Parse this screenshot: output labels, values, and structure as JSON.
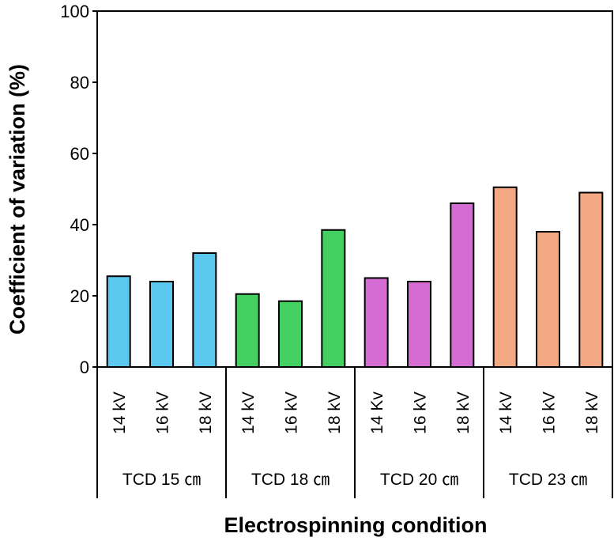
{
  "chart_data": {
    "type": "bar",
    "title": "",
    "xlabel": "Electrospinning condition",
    "ylabel": "Coefficient of variation (%)",
    "ylim": [
      0,
      100
    ],
    "yticks": [
      "0",
      "20",
      "40",
      "60",
      "80",
      "100"
    ],
    "grid": false,
    "groups": [
      {
        "name": "TCD 15 ㎝",
        "color": "#5bc8f0",
        "categories": [
          "14 kV",
          "16 kV",
          "18 kV"
        ],
        "values": [
          25.5,
          24,
          32
        ]
      },
      {
        "name": "TCD 18 ㎝",
        "color": "#44d060",
        "categories": [
          "14 kV",
          "16 kV",
          "18 kV"
        ],
        "values": [
          20.5,
          18.5,
          38.5
        ]
      },
      {
        "name": "TCD 20 ㎝",
        "color": "#d46cd4",
        "categories": [
          "14 Kv",
          "16 kV",
          "18 kV"
        ],
        "values": [
          25,
          24,
          46
        ]
      },
      {
        "name": "TCD 23 ㎝",
        "color": "#f2a883",
        "categories": [
          "14 kV",
          "16 kV",
          "18 kV"
        ],
        "values": [
          50.5,
          38,
          49
        ]
      }
    ]
  }
}
